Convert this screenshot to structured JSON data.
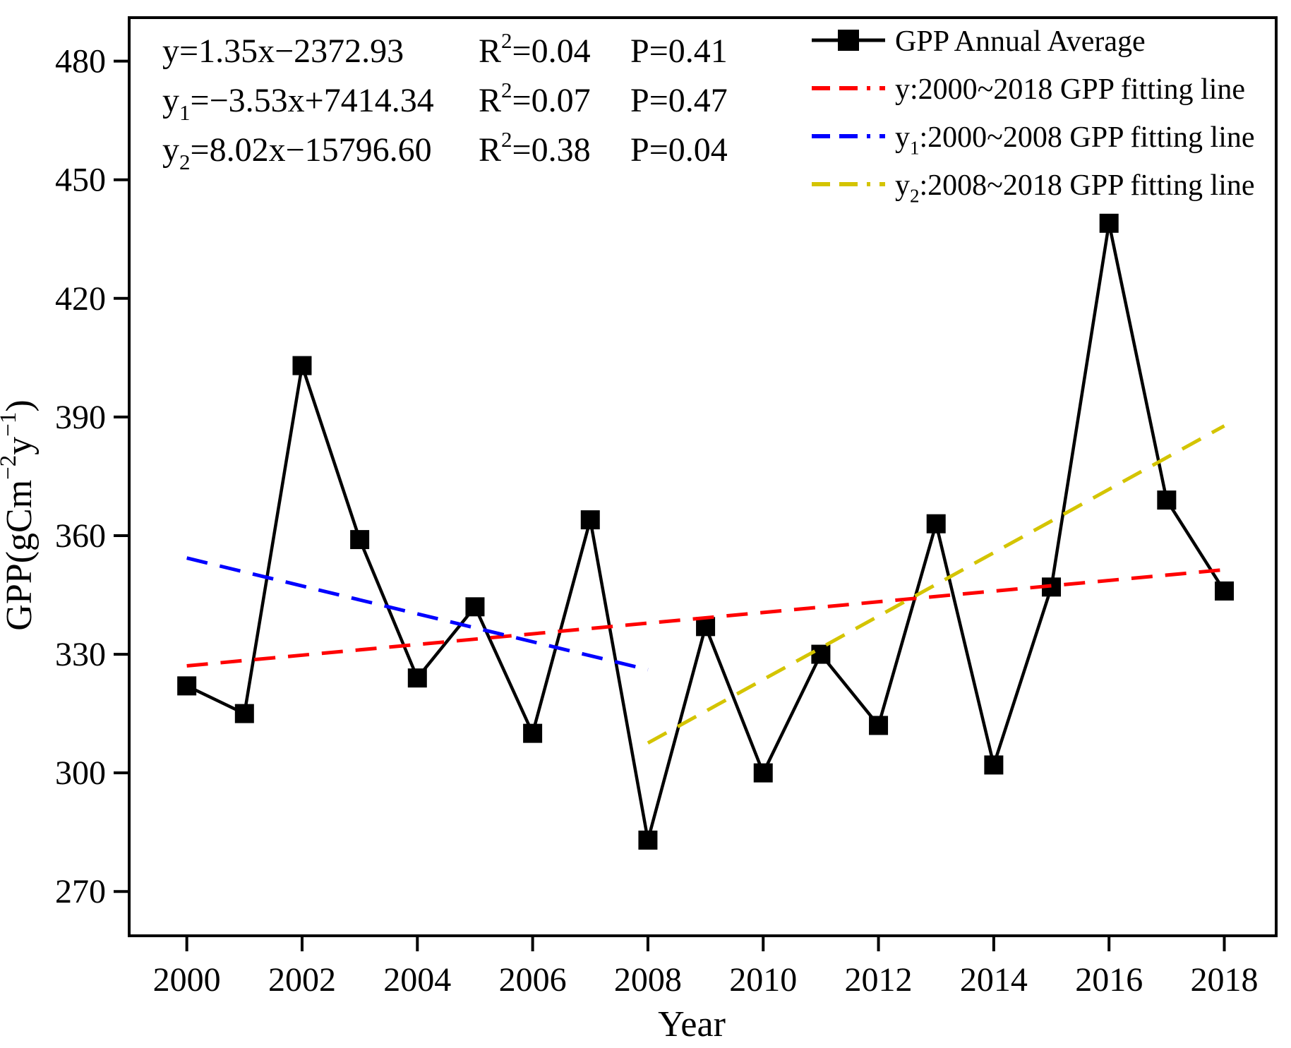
{
  "chart_data": {
    "type": "line",
    "title": "",
    "xlabel": "Year",
    "ylabel": "GPP(gCm−2y−1)",
    "grid": false,
    "legend_position": "top-right-inside",
    "xlim": [
      1999.0,
      2018.9
    ],
    "ylim": [
      258.8,
      491.0
    ],
    "x_ticks": [
      2000,
      2002,
      2004,
      2006,
      2008,
      2010,
      2012,
      2014,
      2016,
      2018
    ],
    "y_ticks": [
      270,
      300,
      330,
      360,
      390,
      420,
      450,
      480
    ],
    "x": [
      2000,
      2001,
      2002,
      2003,
      2004,
      2005,
      2006,
      2007,
      2008,
      2009,
      2010,
      2011,
      2012,
      2013,
      2014,
      2015,
      2016,
      2017,
      2018
    ],
    "series": [
      {
        "name": "GPP Annual Average",
        "color": "#000000",
        "marker": "square",
        "values": [
          322,
          315,
          403,
          359,
          324,
          342,
          310,
          364,
          283,
          337,
          300,
          330,
          312,
          363,
          302,
          347,
          439,
          369,
          346
        ]
      }
    ],
    "fits": [
      {
        "name": "y:2000~2018 GPP fitting line",
        "slope": 1.35,
        "intercept": -2372.93,
        "r2": 0.04,
        "p": 0.41,
        "x_start": 2000,
        "x_end": 2018,
        "color": "#ff0000"
      },
      {
        "name": "y1:2000~2008 GPP fitting line",
        "slope": -3.53,
        "intercept": 7414.34,
        "r2": 0.07,
        "p": 0.47,
        "x_start": 2000,
        "x_end": 2008,
        "color": "#0000ff"
      },
      {
        "name": "y2:2008~2018 GPP fitting line",
        "slope": 8.02,
        "intercept": -15796.6,
        "r2": 0.38,
        "p": 0.04,
        "x_start": 2008,
        "x_end": 2018,
        "color": "#d4c400"
      }
    ]
  },
  "labels": {
    "ylabel_parts": [
      {
        "t": "GPP(gCm"
      },
      {
        "t": "−2",
        "sup": true
      },
      {
        "t": "y"
      },
      {
        "t": "−1",
        "sup": true
      },
      {
        "t": ")"
      }
    ]
  },
  "equations": {
    "rows": [
      {
        "eq": [
          {
            "t": "y=1.35x−2372.93"
          }
        ],
        "r2": [
          {
            "t": "R"
          },
          {
            "t": "2",
            "sup": true
          },
          {
            "t": "=0.04"
          }
        ],
        "p": [
          {
            "t": "P=0.41"
          }
        ]
      },
      {
        "eq": [
          {
            "t": "y"
          },
          {
            "t": "1",
            "sub": true
          },
          {
            "t": "=−3.53x+7414.34"
          }
        ],
        "r2": [
          {
            "t": "R"
          },
          {
            "t": "2",
            "sup": true
          },
          {
            "t": "=0.07"
          }
        ],
        "p": [
          {
            "t": "P=0.47"
          }
        ]
      },
      {
        "eq": [
          {
            "t": "y"
          },
          {
            "t": "2",
            "sub": true
          },
          {
            "t": "=8.02x−15796.60"
          }
        ],
        "r2": [
          {
            "t": "R"
          },
          {
            "t": "2",
            "sup": true
          },
          {
            "t": "=0.38"
          }
        ],
        "p": [
          {
            "t": "P=0.04"
          }
        ]
      }
    ]
  },
  "legend": {
    "entries": [
      {
        "marker": "line-square",
        "color": "#000000",
        "label": [
          {
            "t": "GPP Annual Average"
          }
        ]
      },
      {
        "marker": "dashed",
        "color": "#ff0000",
        "label": [
          {
            "t": "y:2000~2018 GPP fitting line"
          }
        ]
      },
      {
        "marker": "dashed",
        "color": "#0000ff",
        "label": [
          {
            "t": "y"
          },
          {
            "t": "1",
            "sub": true
          },
          {
            "t": ":2000~2008 GPP fitting line"
          }
        ]
      },
      {
        "marker": "dashed",
        "color": "#d4c400",
        "label": [
          {
            "t": "y"
          },
          {
            "t": "2",
            "sub": true
          },
          {
            "t": ":2008~2018 GPP fitting line"
          }
        ]
      }
    ]
  },
  "colors": {
    "frame": "#000000",
    "series": "#000000",
    "fit_all": "#ff0000",
    "fit_2000_2008": "#0000ff",
    "fit_2008_2018": "#d4c400"
  }
}
